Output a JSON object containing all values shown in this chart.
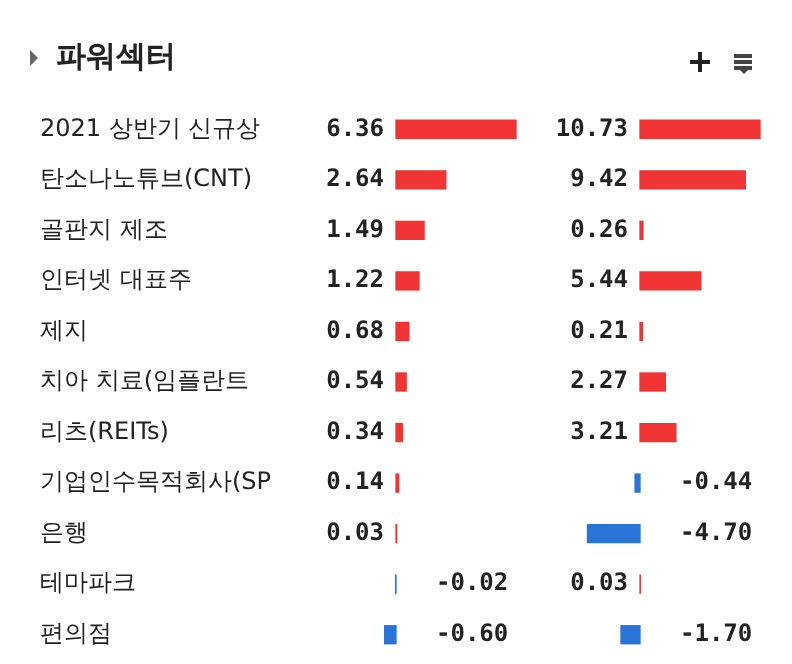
{
  "chart_data": [
    {
      "type": "bar",
      "orientation": "horizontal",
      "title": "파워섹터",
      "categories": [
        "2021 상반기 신규상",
        "탄소나노튜브(CNT)",
        "골판지 제조",
        "인터넷 대표주",
        "제지",
        "치아 치료(임플란트",
        "리츠(REITs)",
        "기업인수목적회사(SP",
        "은행",
        "테마파크",
        "편의점"
      ],
      "values": [
        6.36,
        2.64,
        1.49,
        1.22,
        0.68,
        0.54,
        0.34,
        0.14,
        0.03,
        -0.02,
        -0.6
      ],
      "colors": [
        "#f03434",
        "#f03434",
        "#f03434",
        "#f03434",
        "#f03434",
        "#f03434",
        "#f03434",
        "#f03434",
        "#f03434",
        "#2a74d8",
        "#2a74d8"
      ],
      "value_labels": [
        "6.36",
        "2.64",
        "1.49",
        "1.22",
        "0.68",
        "0.54",
        "0.34",
        "0.14",
        "0.03",
        "-0.02",
        "-0.60"
      ],
      "tick_labels": "y"
    },
    {
      "type": "bar",
      "orientation": "horizontal",
      "categories": [
        null,
        null,
        null,
        null,
        null,
        null,
        null,
        null,
        null,
        null,
        null
      ],
      "values": [
        10.73,
        9.42,
        0.26,
        5.44,
        0.21,
        2.27,
        3.21,
        -0.44,
        -4.7,
        0.03,
        -1.7
      ],
      "colors": [
        "#f03434",
        "#f03434",
        "#f03434",
        "#f03434",
        "#f03434",
        "#f03434",
        "#f03434",
        "#2a74d8",
        "#2a74d8",
        "#f03434",
        "#2a74d8"
      ],
      "value_labels": [
        "10.73",
        "9.42",
        "0.26",
        "5.44",
        "0.21",
        "2.27",
        "3.21",
        "-0.44",
        "-4.70",
        "0.03",
        "-1.70"
      ],
      "tick_labels": false
    }
  ]
}
